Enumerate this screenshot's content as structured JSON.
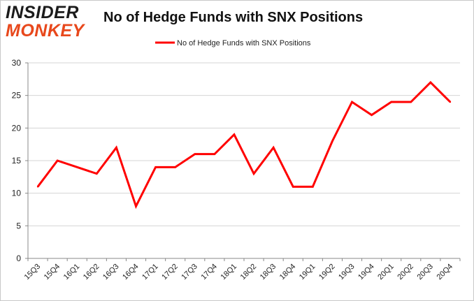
{
  "logo": {
    "top": "INSIDER",
    "bottom": "MONKEY"
  },
  "chart_data": {
    "type": "line",
    "title": "No of Hedge Funds with SNX Positions",
    "xlabel": "",
    "ylabel": "",
    "ylim": [
      0,
      30
    ],
    "yticks": [
      0,
      5,
      10,
      15,
      20,
      25,
      30
    ],
    "grid": true,
    "legend_position": "top-center",
    "categories": [
      "15Q3",
      "15Q4",
      "16Q1",
      "16Q2",
      "16Q3",
      "16Q4",
      "17Q1",
      "17Q2",
      "17Q3",
      "17Q4",
      "18Q1",
      "18Q2",
      "18Q3",
      "18Q4",
      "19Q1",
      "19Q2",
      "19Q3",
      "19Q4",
      "20Q1",
      "20Q2",
      "20Q3",
      "20Q4"
    ],
    "series": [
      {
        "name": "No of Hedge Funds with SNX Positions",
        "color": "#ff0000",
        "values": [
          11,
          15,
          14,
          13,
          17,
          8,
          14,
          14,
          16,
          16,
          19,
          13,
          17,
          11,
          11,
          18,
          24,
          22,
          24,
          24,
          27,
          24
        ]
      }
    ]
  }
}
